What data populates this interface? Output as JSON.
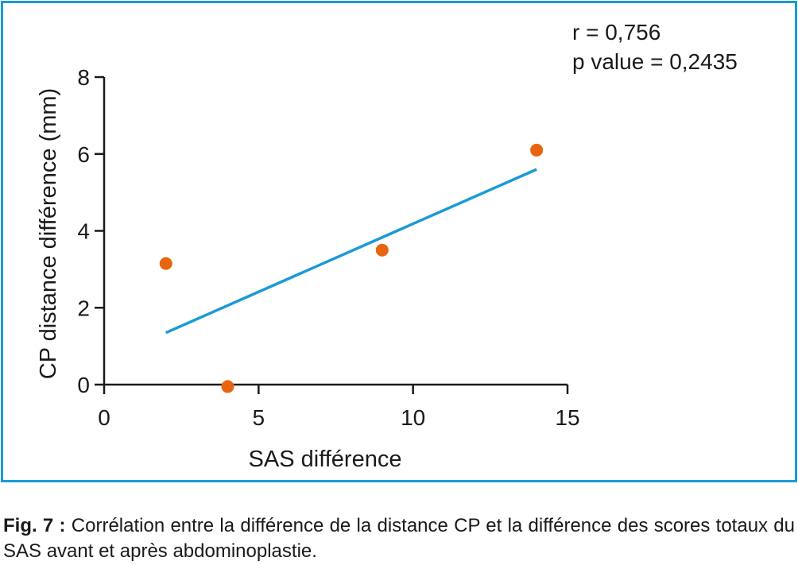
{
  "chart_data": {
    "type": "scatter",
    "xlabel": "SAS différence",
    "ylabel": "CP distance différence (mm)",
    "xlim": [
      0,
      15
    ],
    "ylim": [
      0,
      8
    ],
    "xticks": [
      0,
      5,
      10,
      15
    ],
    "yticks": [
      0,
      2,
      4,
      6,
      8
    ],
    "points": [
      {
        "x": 2,
        "y": 3.15
      },
      {
        "x": 4,
        "y": -0.05
      },
      {
        "x": 9,
        "y": 3.5
      },
      {
        "x": 14,
        "y": 6.1
      }
    ],
    "trendline": {
      "x": [
        2,
        14
      ],
      "y": [
        1.35,
        5.6
      ]
    },
    "annotations": [
      "r = 0,756",
      "p value = 0,2435"
    ],
    "grid": false,
    "point_color": "#e8650f",
    "line_color": "#1a9ad6"
  },
  "caption": {
    "lead": "Fig. 7 :",
    "text": " Corrélation entre la différence de la distance CP et la différence des scores totaux du SAS avant et après abdominoplastie."
  },
  "frame_color": "#1a9ad6"
}
